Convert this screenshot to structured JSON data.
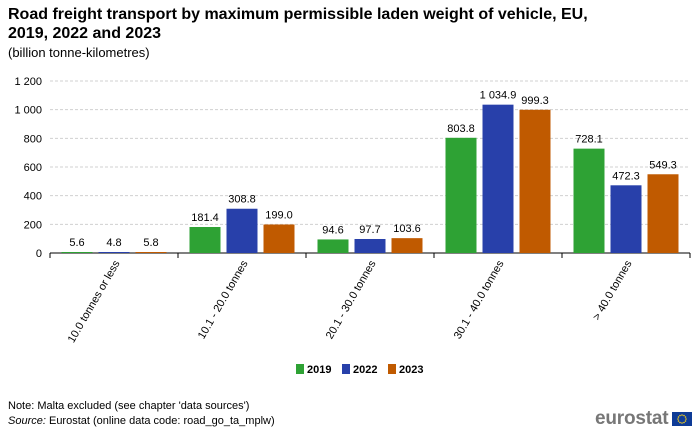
{
  "header": {
    "title": "Road freight transport by maximum permissible laden weight of vehicle, EU, 2019, 2022 and 2023",
    "subtitle": "(billion tonne-kilometres)"
  },
  "footer": {
    "note": "Note: Malta excluded (see chapter 'data sources')",
    "source_label": "Source:",
    "source_text": " Eurostat (online data code: road_go_ta_mplw)",
    "logo_text": "eurostat"
  },
  "chart_data": {
    "type": "bar",
    "categories": [
      "10.0 tonnes or less",
      "10.1 - 20.0 tonnes",
      "20.1 - 30.0 tonnes",
      "30.1 - 40.0 tonnes",
      "> 40.0 tonnes"
    ],
    "series": [
      {
        "name": "2019",
        "color": "#2ea234",
        "values": [
          5.6,
          181.4,
          94.6,
          803.8,
          728.1
        ],
        "labels": [
          "5.6",
          "181.4",
          "94.6",
          "803.8",
          "728.1"
        ]
      },
      {
        "name": "2022",
        "color": "#2840aa",
        "values": [
          4.8,
          308.8,
          97.7,
          1034.9,
          472.3
        ],
        "labels": [
          "4.8",
          "308.8",
          "97.7",
          "1 034.9",
          "472.3"
        ]
      },
      {
        "name": "2023",
        "color": "#c05a00",
        "values": [
          5.8,
          199.0,
          103.6,
          999.3,
          549.3
        ],
        "labels": [
          "5.8",
          "199.0",
          "103.6",
          "999.3",
          "549.3"
        ]
      }
    ],
    "ylim": [
      0,
      1200
    ],
    "yticks": [
      0,
      200,
      400,
      600,
      800,
      1000,
      1200
    ],
    "ytick_labels": [
      "0",
      "200",
      "400",
      "600",
      "800",
      "1 000",
      "1 200"
    ],
    "grid": true,
    "legend_position": "bottom-center"
  }
}
